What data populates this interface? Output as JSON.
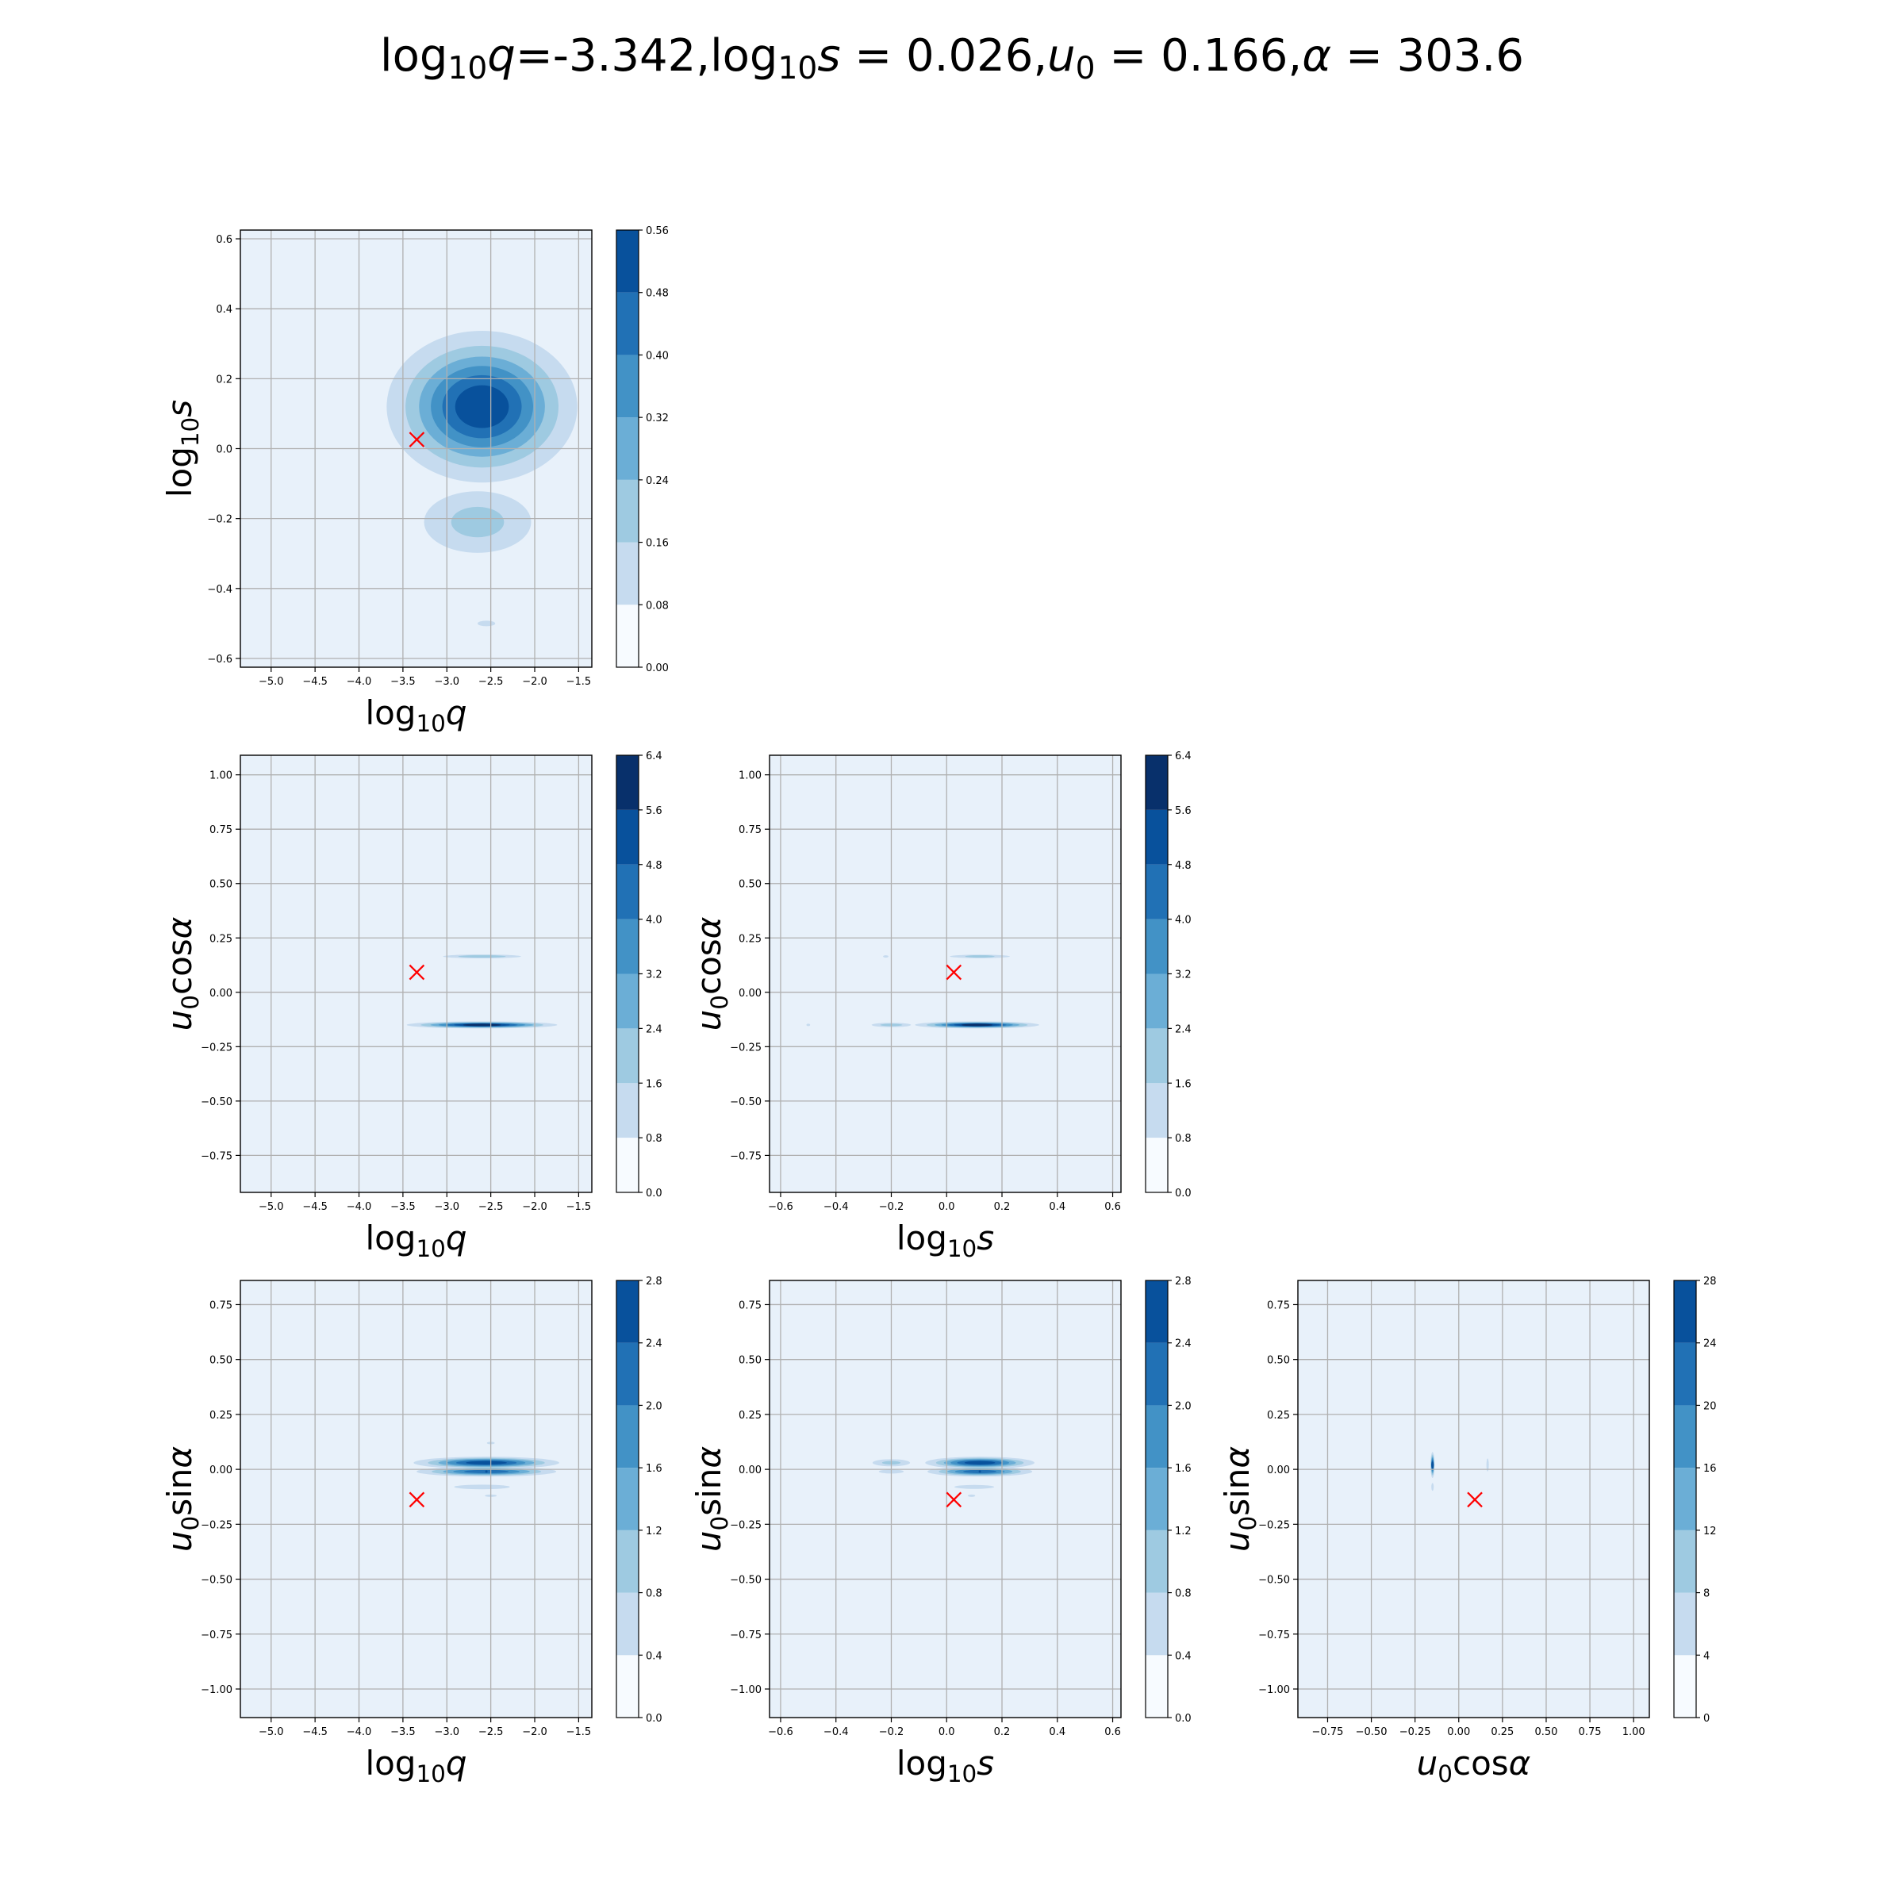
{
  "title": {
    "parts": [
      {
        "t": "log"
      },
      {
        "t": "10",
        "sub": true
      },
      {
        "t": "q",
        "it": true
      },
      {
        "t": "=-3.342,"
      },
      {
        "t": "log"
      },
      {
        "t": "10",
        "sub": true
      },
      {
        "t": "s",
        "it": true
      },
      {
        "t": " = 0.026,"
      },
      {
        "t": "u",
        "it": true
      },
      {
        "t": "0",
        "sub": true
      },
      {
        "t": " = 0.166,"
      },
      {
        "t": "α",
        "it": true
      },
      {
        "t": " = 303.6"
      }
    ]
  },
  "axis_labels": {
    "log10q": [
      {
        "t": "log"
      },
      {
        "t": "10",
        "sub": true
      },
      {
        "t": "q",
        "it": true
      }
    ],
    "log10s": [
      {
        "t": "log"
      },
      {
        "t": "10",
        "sub": true
      },
      {
        "t": "s",
        "it": true
      }
    ],
    "u0cos": [
      {
        "t": "u",
        "it": true
      },
      {
        "t": "0",
        "sub": true
      },
      {
        "t": "cos"
      },
      {
        "t": "α",
        "it": true
      }
    ],
    "u0sin": [
      {
        "t": "u",
        "it": true
      },
      {
        "t": "0",
        "sub": true
      },
      {
        "t": "sin"
      },
      {
        "t": "α",
        "it": true
      }
    ]
  },
  "colors": {
    "levels": [
      "#f7fbff",
      "#deebf7",
      "#c6dbef",
      "#9ecae1",
      "#6baed6",
      "#4292c6",
      "#2171b5",
      "#08519c",
      "#08306b"
    ],
    "background": "#e8f1fa",
    "marker": "#ff0000",
    "grid": "#b0b0b0"
  },
  "chart_data": [
    {
      "id": "q-s",
      "type": "heatmap",
      "subtype": "filled-contour",
      "row": 0,
      "col": 0,
      "xlabel": "log10q",
      "ylabel": "log10s",
      "xlim": [
        -5.35,
        -1.35
      ],
      "ylim": [
        -0.625,
        0.625
      ],
      "xticks": [
        "−5.0",
        "−4.5",
        "−4.0",
        "−3.5",
        "−3.0",
        "−2.5",
        "−2.0",
        "−1.5"
      ],
      "xtick_values": [
        -5.0,
        -4.5,
        -4.0,
        -3.5,
        -3.0,
        -2.5,
        -2.0,
        -1.5
      ],
      "yticks": [
        "−0.6",
        "−0.4",
        "−0.2",
        "0.0",
        "0.2",
        "0.4",
        "0.6"
      ],
      "ytick_values": [
        -0.6,
        -0.4,
        -0.2,
        0.0,
        0.2,
        0.4,
        0.6
      ],
      "colorbar": {
        "ticks": [
          "0.00",
          "0.08",
          "0.16",
          "0.24",
          "0.32",
          "0.40",
          "0.48",
          "0.56"
        ],
        "values": [
          0,
          0.08,
          0.16,
          0.24,
          0.32,
          0.4,
          0.48,
          0.56
        ],
        "max": 0.56
      },
      "peaks": [
        {
          "x": -2.6,
          "y": 0.12,
          "sx": 0.55,
          "sy": 0.11,
          "peak": 0.56
        },
        {
          "x": -2.65,
          "y": -0.21,
          "sx": 0.45,
          "sy": 0.065,
          "peak": 0.2
        },
        {
          "x": -2.55,
          "y": -0.5,
          "sx": 0.15,
          "sy": 0.012,
          "peak": 0.1
        }
      ],
      "marker": {
        "x": -3.342,
        "y": 0.026
      }
    },
    {
      "id": "q-ucos",
      "type": "heatmap",
      "subtype": "filled-contour",
      "row": 1,
      "col": 0,
      "xlabel": "log10q",
      "ylabel": "u0cos",
      "xlim": [
        -5.35,
        -1.35
      ],
      "ylim": [
        -0.92,
        1.09
      ],
      "xticks": [
        "−5.0",
        "−4.5",
        "−4.0",
        "−3.5",
        "−3.0",
        "−2.5",
        "−2.0",
        "−1.5"
      ],
      "xtick_values": [
        -5.0,
        -4.5,
        -4.0,
        -3.5,
        -3.0,
        -2.5,
        -2.0,
        -1.5
      ],
      "yticks": [
        "−0.75",
        "−0.50",
        "−0.25",
        "0.00",
        "0.25",
        "0.50",
        "0.75",
        "1.00"
      ],
      "ytick_values": [
        -0.75,
        -0.5,
        -0.25,
        0.0,
        0.25,
        0.5,
        0.75,
        1.0
      ],
      "colorbar": {
        "ticks": [
          "0.0",
          "0.8",
          "1.6",
          "2.4",
          "3.2",
          "4.0",
          "4.8",
          "5.6",
          "6.4"
        ],
        "values": [
          0,
          0.8,
          1.6,
          2.4,
          3.2,
          4.0,
          4.8,
          5.6,
          6.4
        ],
        "max": 6.4
      },
      "peaks": [
        {
          "x": -2.6,
          "y": -0.15,
          "sx": 0.42,
          "sy": 0.008,
          "peak": 6.4
        },
        {
          "x": -2.6,
          "y": 0.165,
          "sx": 0.3,
          "sy": 0.006,
          "peak": 2.4
        }
      ],
      "marker": {
        "x": -3.342,
        "y": 0.092
      }
    },
    {
      "id": "s-ucos",
      "type": "heatmap",
      "subtype": "filled-contour",
      "row": 1,
      "col": 1,
      "xlabel": "log10s",
      "ylabel": "u0cos",
      "xlim": [
        -0.64,
        0.63
      ],
      "ylim": [
        -0.92,
        1.09
      ],
      "xticks": [
        "−0.6",
        "−0.4",
        "−0.2",
        "0.0",
        "0.2",
        "0.4",
        "0.6"
      ],
      "xtick_values": [
        -0.6,
        -0.4,
        -0.2,
        0.0,
        0.2,
        0.4,
        0.6
      ],
      "yticks": [
        "−0.75",
        "−0.50",
        "−0.25",
        "0.00",
        "0.25",
        "0.50",
        "0.75",
        "1.00"
      ],
      "ytick_values": [
        -0.75,
        -0.5,
        -0.25,
        0.0,
        0.25,
        0.5,
        0.75,
        1.0
      ],
      "colorbar": {
        "ticks": [
          "0.0",
          "0.8",
          "1.6",
          "2.4",
          "3.2",
          "4.0",
          "4.8",
          "5.6",
          "6.4"
        ],
        "values": [
          0,
          0.8,
          1.6,
          2.4,
          3.2,
          4.0,
          4.8,
          5.6,
          6.4
        ],
        "max": 6.4
      },
      "peaks": [
        {
          "x": 0.11,
          "y": -0.15,
          "sx": 0.11,
          "sy": 0.008,
          "peak": 6.4
        },
        {
          "x": 0.12,
          "y": 0.165,
          "sx": 0.08,
          "sy": 0.006,
          "peak": 2.0
        },
        {
          "x": -0.2,
          "y": -0.15,
          "sx": 0.05,
          "sy": 0.007,
          "peak": 2.2
        },
        {
          "x": -0.5,
          "y": -0.15,
          "sx": 0.01,
          "sy": 0.004,
          "peak": 1.0
        },
        {
          "x": -0.22,
          "y": 0.165,
          "sx": 0.02,
          "sy": 0.003,
          "peak": 0.9
        }
      ],
      "marker": {
        "x": 0.026,
        "y": 0.092
      }
    },
    {
      "id": "q-usin",
      "type": "heatmap",
      "subtype": "filled-contour",
      "row": 2,
      "col": 0,
      "xlabel": "log10q",
      "ylabel": "u0sin",
      "xlim": [
        -5.35,
        -1.35
      ],
      "ylim": [
        -1.13,
        0.86
      ],
      "xticks": [
        "−5.0",
        "−4.5",
        "−4.0",
        "−3.5",
        "−3.0",
        "−2.5",
        "−2.0",
        "−1.5"
      ],
      "xtick_values": [
        -5.0,
        -4.5,
        -4.0,
        -3.5,
        -3.0,
        -2.5,
        -2.0,
        -1.5
      ],
      "yticks": [
        "−1.00",
        "−0.75",
        "−0.50",
        "−0.25",
        "0.00",
        "0.25",
        "0.50",
        "0.75"
      ],
      "ytick_values": [
        -1.0,
        -0.75,
        -0.5,
        -0.25,
        0.0,
        0.25,
        0.5,
        0.75
      ],
      "colorbar": {
        "ticks": [
          "0.0",
          "0.4",
          "0.8",
          "1.2",
          "1.6",
          "2.0",
          "2.4",
          "2.8"
        ],
        "values": [
          0,
          0.4,
          0.8,
          1.2,
          1.6,
          2.0,
          2.4,
          2.8
        ],
        "max": 2.8
      },
      "peaks": [
        {
          "x": -2.55,
          "y": 0.03,
          "sx": 0.42,
          "sy": 0.014,
          "peak": 2.8
        },
        {
          "x": -2.55,
          "y": -0.01,
          "sx": 0.42,
          "sy": 0.012,
          "peak": 2.4
        },
        {
          "x": -2.6,
          "y": -0.08,
          "sx": 0.3,
          "sy": 0.01,
          "peak": 0.7
        },
        {
          "x": -2.5,
          "y": 0.12,
          "sx": 0.05,
          "sy": 0.004,
          "peak": 0.6
        },
        {
          "x": -2.5,
          "y": -0.12,
          "sx": 0.1,
          "sy": 0.004,
          "peak": 0.5
        }
      ],
      "marker": {
        "x": -3.342,
        "y": -0.138
      }
    },
    {
      "id": "s-usin",
      "type": "heatmap",
      "subtype": "filled-contour",
      "row": 2,
      "col": 1,
      "xlabel": "log10s",
      "ylabel": "u0sin",
      "xlim": [
        -0.64,
        0.63
      ],
      "ylim": [
        -1.13,
        0.86
      ],
      "xticks": [
        "−0.6",
        "−0.4",
        "−0.2",
        "0.0",
        "0.2",
        "0.4",
        "0.6"
      ],
      "xtick_values": [
        -0.6,
        -0.4,
        -0.2,
        0.0,
        0.2,
        0.4,
        0.6
      ],
      "yticks": [
        "−1.00",
        "−0.75",
        "−0.50",
        "−0.25",
        "0.00",
        "0.25",
        "0.50",
        "0.75"
      ],
      "ytick_values": [
        -1.0,
        -0.75,
        -0.5,
        -0.25,
        0.0,
        0.25,
        0.5,
        0.75
      ],
      "colorbar": {
        "ticks": [
          "0.0",
          "0.4",
          "0.8",
          "1.2",
          "1.6",
          "2.0",
          "2.4",
          "2.8"
        ],
        "values": [
          0,
          0.4,
          0.8,
          1.2,
          1.6,
          2.0,
          2.4,
          2.8
        ],
        "max": 2.8
      },
      "peaks": [
        {
          "x": 0.12,
          "y": 0.03,
          "sx": 0.1,
          "sy": 0.014,
          "peak": 2.8
        },
        {
          "x": 0.12,
          "y": -0.01,
          "sx": 0.1,
          "sy": 0.012,
          "peak": 2.4
        },
        {
          "x": 0.1,
          "y": -0.08,
          "sx": 0.08,
          "sy": 0.01,
          "peak": 0.6
        },
        {
          "x": -0.2,
          "y": 0.03,
          "sx": 0.05,
          "sy": 0.012,
          "peak": 1.0
        },
        {
          "x": -0.2,
          "y": -0.01,
          "sx": 0.05,
          "sy": 0.01,
          "peak": 0.6
        },
        {
          "x": 0.09,
          "y": -0.12,
          "sx": 0.02,
          "sy": 0.004,
          "peak": 0.5
        }
      ],
      "marker": {
        "x": 0.026,
        "y": -0.138
      }
    },
    {
      "id": "ucos-usin",
      "type": "heatmap",
      "subtype": "filled-contour",
      "row": 2,
      "col": 2,
      "xlabel": "u0cos",
      "ylabel": "u0sin",
      "xlim": [
        -0.92,
        1.09
      ],
      "ylim": [
        -1.13,
        0.86
      ],
      "xticks": [
        "−0.75",
        "−0.50",
        "−0.25",
        "0.00",
        "0.25",
        "0.50",
        "0.75",
        "1.00"
      ],
      "xtick_values": [
        -0.75,
        -0.5,
        -0.25,
        0.0,
        0.25,
        0.5,
        0.75,
        1.0
      ],
      "yticks": [
        "−1.00",
        "−0.75",
        "−0.50",
        "−0.25",
        "0.00",
        "0.25",
        "0.50",
        "0.75"
      ],
      "ytick_values": [
        -1.0,
        -0.75,
        -0.5,
        -0.25,
        0.0,
        0.25,
        0.5,
        0.75
      ],
      "colorbar": {
        "ticks": [
          "0",
          "4",
          "8",
          "12",
          "16",
          "20",
          "24",
          "28"
        ],
        "values": [
          0,
          4,
          8,
          12,
          16,
          20,
          24,
          28
        ],
        "max": 28
      },
      "peaks": [
        {
          "x": -0.15,
          "y": 0.02,
          "sx": 0.006,
          "sy": 0.03,
          "peak": 28
        },
        {
          "x": -0.15,
          "y": -0.08,
          "sx": 0.004,
          "sy": 0.02,
          "peak": 6
        },
        {
          "x": 0.165,
          "y": 0.02,
          "sx": 0.004,
          "sy": 0.025,
          "peak": 8
        }
      ],
      "marker": {
        "x": 0.092,
        "y": -0.138
      }
    }
  ]
}
